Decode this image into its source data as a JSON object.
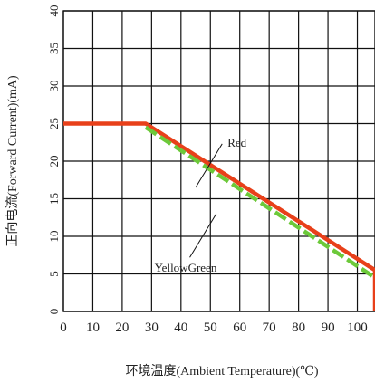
{
  "chart_data": {
    "type": "line",
    "title": "",
    "xlabel": "环境温度(Ambient Temperature)(℃)",
    "ylabel": "正向电流(Forward Current)(mA)",
    "xlim": [
      0,
      106
    ],
    "ylim": [
      0,
      40
    ],
    "x_ticks": [
      "0",
      "10",
      "20",
      "30",
      "40",
      "50",
      "60",
      "70",
      "80",
      "90",
      "100"
    ],
    "y_ticks": [
      "0",
      "5",
      "10",
      "15",
      "20",
      "25",
      "30",
      "35",
      "40"
    ],
    "grid": true,
    "series": [
      {
        "name": "Red",
        "color": "#e8401a",
        "style": "solid",
        "points": [
          [
            0,
            25
          ],
          [
            28,
            25
          ],
          [
            106,
            5.5
          ]
        ]
      },
      {
        "name": "YellowGreen",
        "color": "#6cc93a",
        "style": "dashed",
        "points": [
          [
            28,
            24.5
          ],
          [
            106,
            4.5
          ]
        ]
      }
    ],
    "annotations": [
      {
        "text": "Red",
        "series": "Red"
      },
      {
        "text": "YellowGreen",
        "series": "YellowGreen"
      }
    ]
  }
}
